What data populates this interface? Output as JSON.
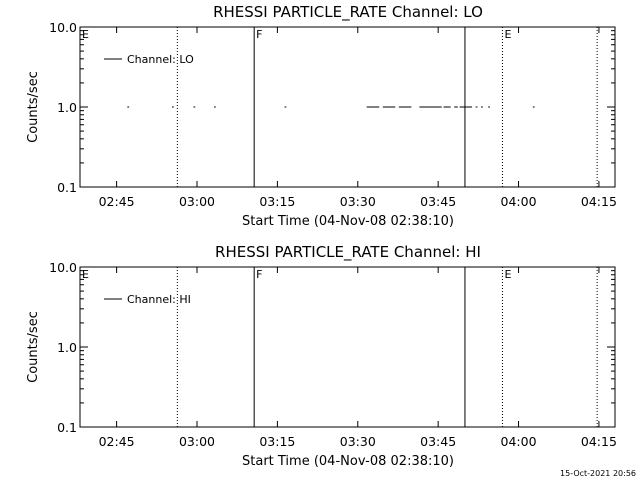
{
  "page": {
    "timestamp": "15-Oct-2021 20:56"
  },
  "chart_data": [
    {
      "type": "line",
      "title": "RHESSI PARTICLE_RATE Channel: LO",
      "xlabel": "Start Time (04-Nov-08 02:38:10)",
      "ylabel": "Counts/sec",
      "yscale": "log",
      "ylim": [
        0.1,
        10.0
      ],
      "yticks": [
        "10.0",
        "1.0",
        "0.1"
      ],
      "xlim": [
        "02:38:10",
        "04:18:00"
      ],
      "xticks": [
        "02:45",
        "03:00",
        "03:15",
        "03:30",
        "03:45",
        "04:00",
        "04:15"
      ],
      "legend": {
        "placement": "top-left",
        "label": "Channel: LO"
      },
      "markers": [
        {
          "time": "02:38:10",
          "label": "E",
          "style": "solid"
        },
        {
          "time": "02:56:20",
          "label": "",
          "style": "dotted"
        },
        {
          "time": "03:10:40",
          "label": "F",
          "style": "solid"
        },
        {
          "time": "03:50:00",
          "label": "",
          "style": "solid"
        },
        {
          "time": "03:57:00",
          "label": "E",
          "style": "dotted"
        },
        {
          "time": "04:14:40",
          "label": "",
          "style": "dotted"
        }
      ],
      "series": [
        {
          "name": "Channel: LO",
          "segments": [
            [
              "02:47:00",
              "02:47:20"
            ],
            [
              "02:55:20",
              "02:55:40"
            ],
            [
              "02:59:20",
              "02:59:40"
            ],
            [
              "03:03:10",
              "03:03:30"
            ],
            [
              "03:16:20",
              "03:16:40"
            ],
            [
              "03:31:40",
              "03:34:00"
            ],
            [
              "03:34:40",
              "03:37:00"
            ],
            [
              "03:37:40",
              "03:40:00"
            ],
            [
              "03:41:30",
              "03:45:40"
            ],
            [
              "03:46:00",
              "03:47:20"
            ],
            [
              "03:48:00",
              "03:48:40"
            ],
            [
              "03:49:00",
              "03:51:20"
            ],
            [
              "03:52:00",
              "03:52:20"
            ],
            [
              "03:53:00",
              "03:53:20"
            ],
            [
              "03:54:20",
              "03:54:40"
            ],
            [
              "04:02:40",
              "04:03:00"
            ]
          ],
          "value": 1.0
        }
      ]
    },
    {
      "type": "line",
      "title": "RHESSI PARTICLE_RATE Channel: HI",
      "xlabel": "Start Time (04-Nov-08 02:38:10)",
      "ylabel": "Counts/sec",
      "yscale": "log",
      "ylim": [
        0.1,
        10.0
      ],
      "yticks": [
        "10.0",
        "1.0",
        "0.1"
      ],
      "xlim": [
        "02:38:10",
        "04:18:00"
      ],
      "xticks": [
        "02:45",
        "03:00",
        "03:15",
        "03:30",
        "03:45",
        "04:00",
        "04:15"
      ],
      "legend": {
        "placement": "top-left",
        "label": "Channel: HI"
      },
      "markers": [
        {
          "time": "02:38:10",
          "label": "E",
          "style": "solid"
        },
        {
          "time": "02:56:20",
          "label": "",
          "style": "dotted"
        },
        {
          "time": "03:10:40",
          "label": "F",
          "style": "solid"
        },
        {
          "time": "03:50:00",
          "label": "",
          "style": "solid"
        },
        {
          "time": "03:57:00",
          "label": "E",
          "style": "dotted"
        },
        {
          "time": "04:14:40",
          "label": "",
          "style": "dotted"
        }
      ],
      "series": [
        {
          "name": "Channel: HI",
          "segments": [],
          "value": null
        }
      ]
    }
  ]
}
